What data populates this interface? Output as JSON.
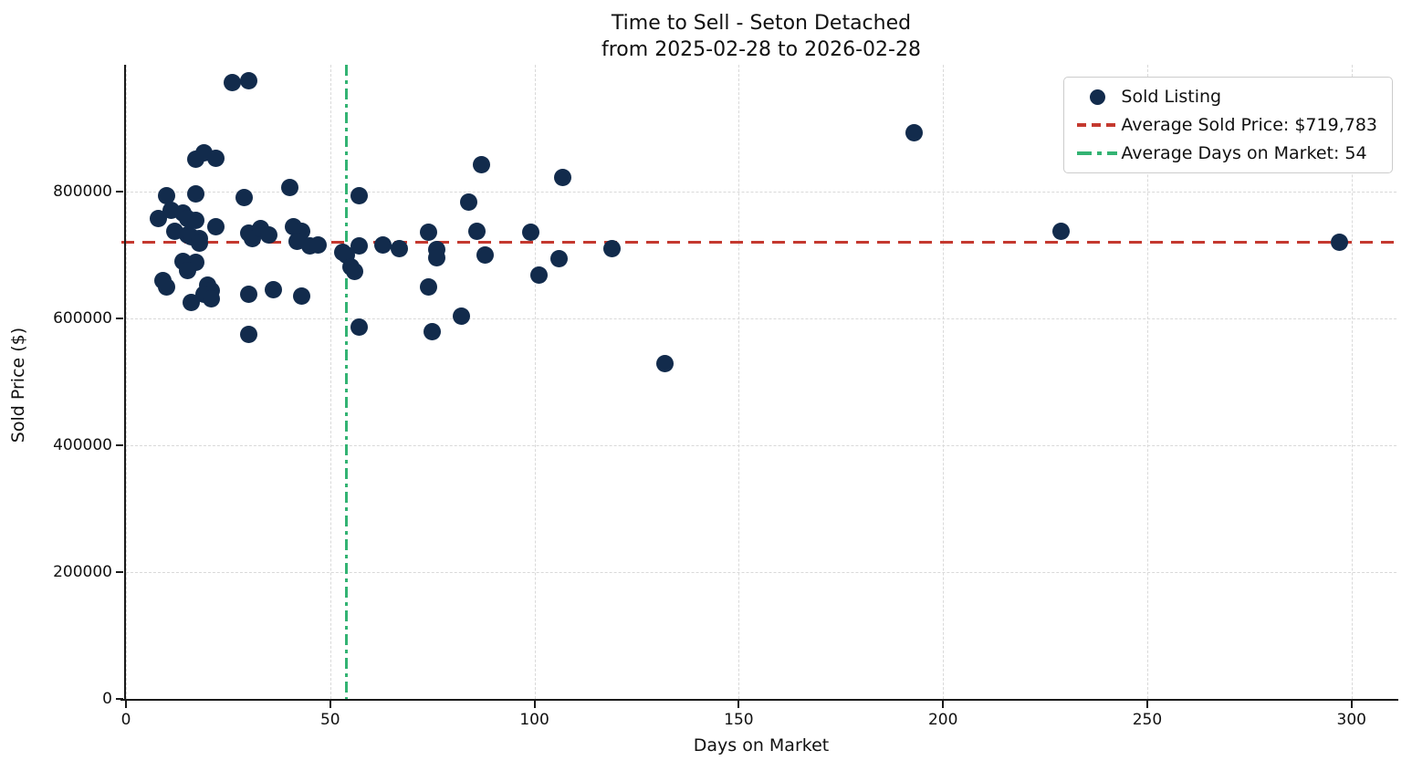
{
  "title": {
    "line1": "Time to Sell - Seton Detached",
    "line2": "from 2025-02-28 to 2026-02-28"
  },
  "legend": {
    "items": [
      {
        "label": "Sold Listing",
        "marker": "dot"
      },
      {
        "label": "Average Sold Price: $719,783",
        "marker": "dashed-line"
      },
      {
        "label": "Average Days on Market: 54",
        "marker": "dashdot-line"
      }
    ]
  },
  "colors": {
    "point": "#122b4c",
    "avg_price_line": "#c4392f",
    "avg_days_line": "#33b373",
    "grid": "#d9d9d9",
    "axis": "#1a1a1a",
    "background": "#ffffff"
  },
  "chart_data": {
    "type": "scatter",
    "title": "Time to Sell - Seton Detached from 2025-02-28 to 2026-02-28",
    "xlabel": "Days on Market",
    "ylabel": "Sold Price ($)",
    "xlim": [
      0,
      311
    ],
    "ylim": [
      0,
      1000000
    ],
    "x_ticks": [
      0,
      50,
      100,
      150,
      200,
      250,
      300
    ],
    "y_ticks": [
      0,
      200000,
      400000,
      600000,
      800000
    ],
    "grid": true,
    "legend_position": "upper right",
    "series": [
      {
        "name": "Sold Listing",
        "points": [
          [
            26,
            972000
          ],
          [
            30,
            975000
          ],
          [
            17,
            851000
          ],
          [
            19,
            861000
          ],
          [
            22,
            852000
          ],
          [
            10,
            794000
          ],
          [
            17,
            796000
          ],
          [
            29,
            791000
          ],
          [
            40,
            807000
          ],
          [
            57,
            793000
          ],
          [
            8,
            758000
          ],
          [
            11,
            771000
          ],
          [
            14,
            766000
          ],
          [
            15,
            758000
          ],
          [
            17,
            754000
          ],
          [
            22,
            745000
          ],
          [
            12,
            738000
          ],
          [
            15,
            732000
          ],
          [
            16,
            729000
          ],
          [
            18,
            726000
          ],
          [
            18,
            718000
          ],
          [
            30,
            734000
          ],
          [
            31,
            726000
          ],
          [
            33,
            742000
          ],
          [
            35,
            732000
          ],
          [
            41,
            744000
          ],
          [
            43,
            738000
          ],
          [
            42,
            721000
          ],
          [
            45,
            714000
          ],
          [
            47,
            716000
          ],
          [
            14,
            690000
          ],
          [
            15,
            684000
          ],
          [
            17,
            689000
          ],
          [
            15,
            676000
          ],
          [
            9,
            660000
          ],
          [
            10,
            649000
          ],
          [
            20,
            652000
          ],
          [
            21,
            644000
          ],
          [
            19,
            638000
          ],
          [
            21,
            631000
          ],
          [
            16,
            625000
          ],
          [
            30,
            638000
          ],
          [
            36,
            646000
          ],
          [
            43,
            635000
          ],
          [
            30,
            575000
          ],
          [
            53,
            705000
          ],
          [
            54,
            700000
          ],
          [
            55,
            681000
          ],
          [
            56,
            674000
          ],
          [
            57,
            715000
          ],
          [
            57,
            587000
          ],
          [
            63,
            716000
          ],
          [
            67,
            710000
          ],
          [
            74,
            736000
          ],
          [
            76,
            709000
          ],
          [
            76,
            696000
          ],
          [
            74,
            650000
          ],
          [
            75,
            579000
          ],
          [
            82,
            603000
          ],
          [
            84,
            783000
          ],
          [
            86,
            737000
          ],
          [
            87,
            842000
          ],
          [
            88,
            700000
          ],
          [
            99,
            736000
          ],
          [
            101,
            668000
          ],
          [
            106,
            694000
          ],
          [
            107,
            822000
          ],
          [
            119,
            710000
          ],
          [
            132,
            529000
          ],
          [
            193,
            893000
          ],
          [
            229,
            738000
          ],
          [
            297,
            720000
          ]
        ]
      }
    ],
    "reference_lines": [
      {
        "axis": "y",
        "value": 719783,
        "style": "dashed",
        "label": "Average Sold Price: $719,783",
        "color": "#c4392f"
      },
      {
        "axis": "x",
        "value": 54,
        "style": "dashdot",
        "label": "Average Days on Market: 54",
        "color": "#33b373"
      }
    ]
  }
}
